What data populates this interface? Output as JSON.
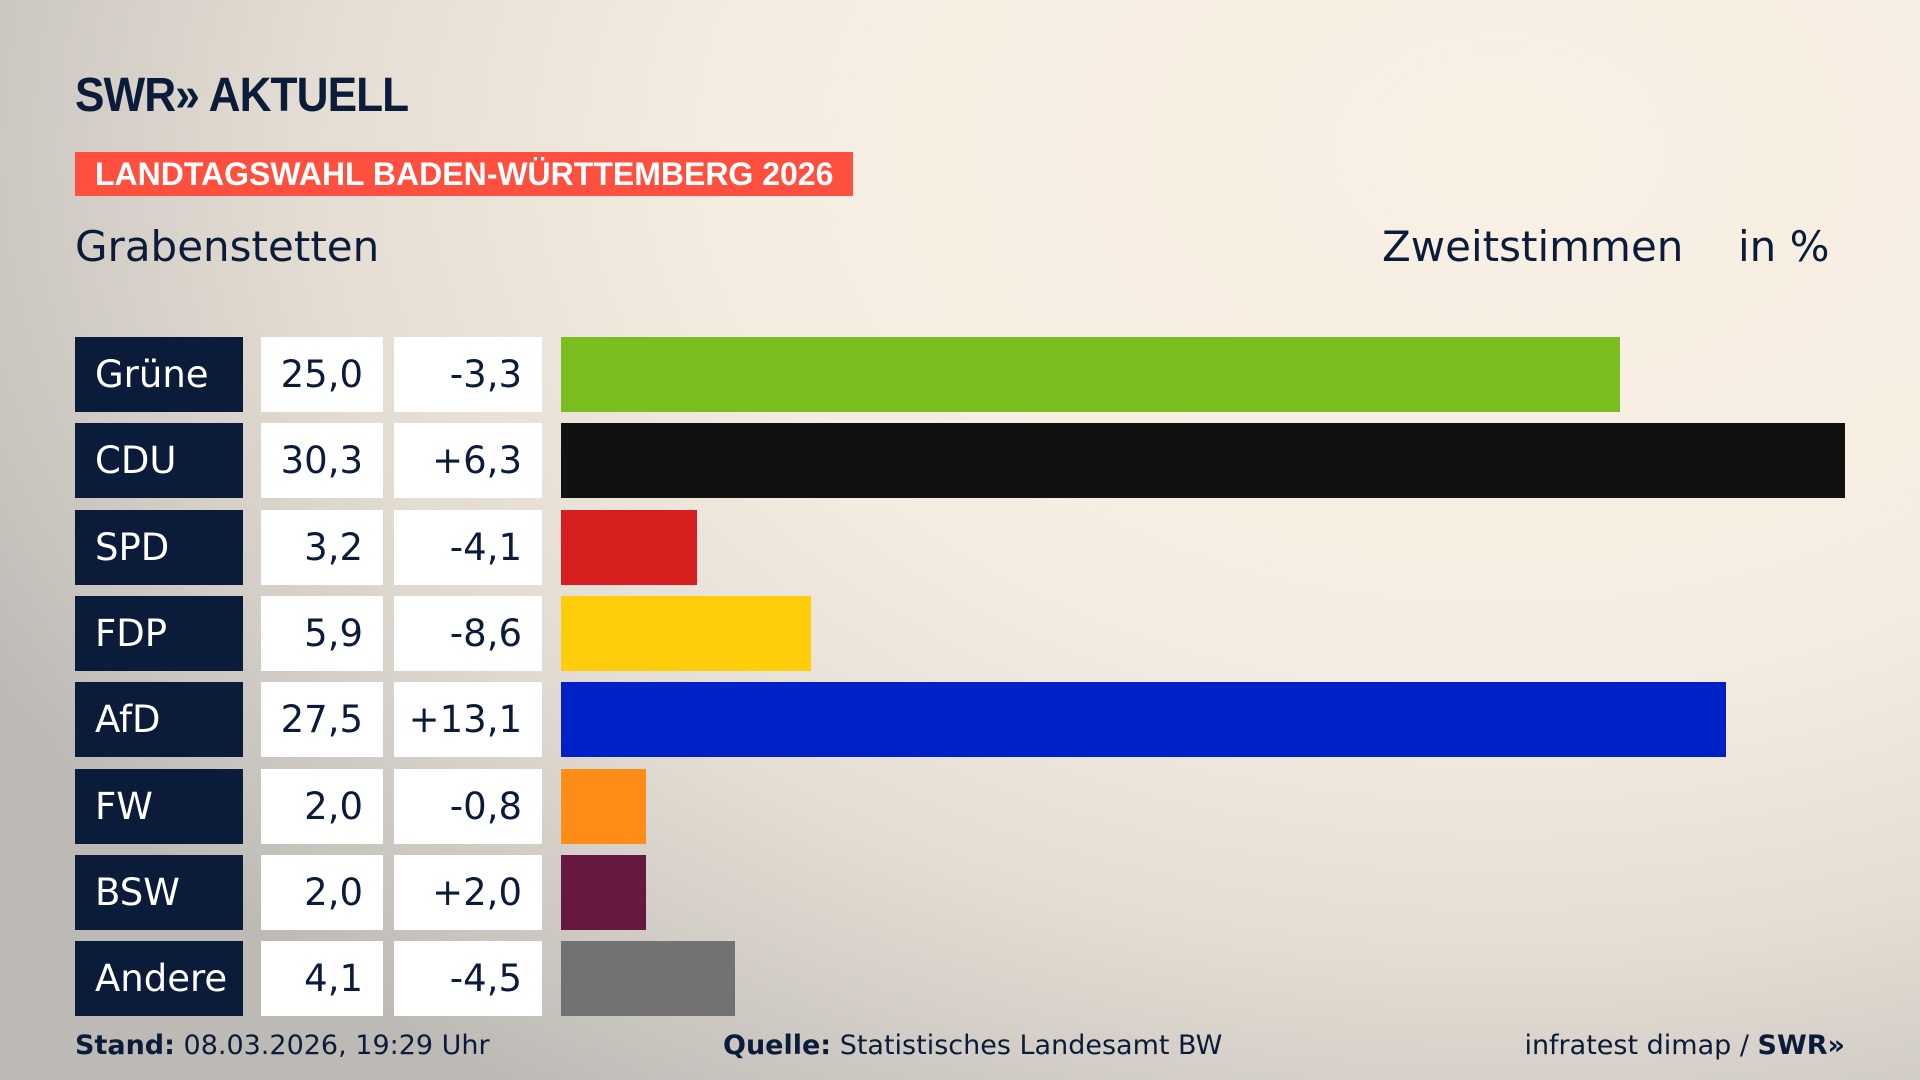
{
  "header": {
    "logo": "SWR» AKTUELL",
    "banner": "LANDTAGSWAHL BADEN-WÜRTTEMBERG 2026",
    "place": "Grabenstetten",
    "vote_type": "Zweitstimmen",
    "unit": "in %"
  },
  "chart_data": {
    "type": "bar",
    "orientation": "horizontal",
    "categories": [
      "Grüne",
      "CDU",
      "SPD",
      "FDP",
      "AfD",
      "FW",
      "BSW",
      "Andere"
    ],
    "values": [
      "25,0",
      "30,3",
      "3,2",
      "5,9",
      "27,5",
      "2,0",
      "2,0",
      "4,1"
    ],
    "numeric_values": [
      25.0,
      30.3,
      3.2,
      5.9,
      27.5,
      2.0,
      2.0,
      4.1
    ],
    "changes": [
      "-3,3",
      "+6,3",
      "-4,1",
      "-8,6",
      "+13,1",
      "-0,8",
      "+2,0",
      "-4,5"
    ],
    "colors": [
      "#7abd1e",
      "#111111",
      "#d81f1f",
      "#ffcd0a",
      "#0020c8",
      "#ff8c17",
      "#66183e",
      "#727272"
    ]
  },
  "footer": {
    "stand_label": "Stand:",
    "stand_value": "08.03.2026, 19:29 Uhr",
    "source_label": "Quelle:",
    "source_value": "Statistisches Landesamt BW",
    "credit": "infratest dimap / ",
    "credit_logo": "SWR»"
  }
}
